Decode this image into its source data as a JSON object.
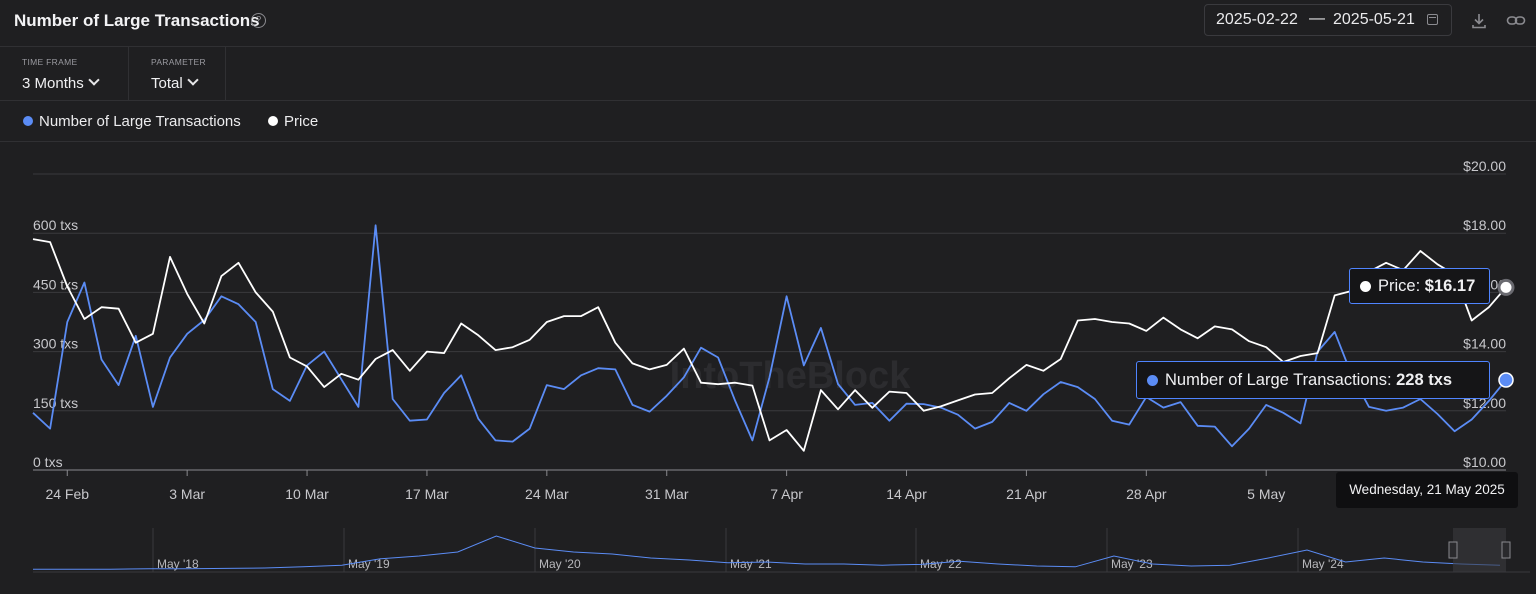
{
  "header": {
    "title": "Number of Large Transactions",
    "date_start": "2025-02-22",
    "date_separator": "—",
    "date_end": "2025-05-21"
  },
  "controls": {
    "time_frame": {
      "label": "TIME FRAME",
      "value": "3 Months"
    },
    "parameter": {
      "label": "PARAMETER",
      "value": "Total"
    }
  },
  "legend": [
    {
      "name": "Number of Large Transactions",
      "color": "#5b8cf5"
    },
    {
      "name": "Price",
      "color": "#ffffff"
    }
  ],
  "watermark": "IntoTheBlock",
  "tooltip": {
    "price_label": "Price:",
    "price_value": "$16.17",
    "tx_label": "Number of Large Transactions:",
    "tx_value": "228 txs",
    "date": "Wednesday, 21 May 2025"
  },
  "chart_data": {
    "type": "line",
    "x_start": "2025-02-22",
    "x_end": "2025-05-21",
    "x_ticks": [
      "24 Feb",
      "3 Mar",
      "10 Mar",
      "17 Mar",
      "24 Mar",
      "31 Mar",
      "7 Apr",
      "14 Apr",
      "21 Apr",
      "28 Apr",
      "5 May"
    ],
    "y_left_ticks": [
      "0 txs",
      "150 txs",
      "300 txs",
      "450 txs",
      "600 txs"
    ],
    "y_left_range": [
      0,
      600
    ],
    "y_right_ticks": [
      "$10.00",
      "$12.00",
      "$14.00",
      "$16.00",
      "$18.00",
      "$20.00"
    ],
    "y_right_range": [
      10,
      20
    ],
    "series": [
      {
        "name": "Number of Large Transactions",
        "axis": "left",
        "color": "#5b8cf5",
        "values": [
          145,
          105,
          375,
          475,
          280,
          215,
          340,
          160,
          285,
          345,
          380,
          440,
          420,
          375,
          205,
          175,
          265,
          300,
          230,
          160,
          620,
          180,
          125,
          128,
          195,
          240,
          130,
          75,
          72,
          105,
          215,
          205,
          240,
          258,
          255,
          165,
          148,
          188,
          235,
          310,
          285,
          175,
          75,
          235,
          440,
          265,
          360,
          218,
          165,
          170,
          125,
          168,
          167,
          158,
          140,
          105,
          122,
          170,
          150,
          192,
          223,
          210,
          180,
          125,
          115,
          185,
          158,
          172,
          112,
          110,
          60,
          105,
          165,
          145,
          118,
          300,
          350,
          240,
          160,
          150,
          158,
          180,
          142,
          98,
          128,
          175,
          228
        ]
      },
      {
        "name": "Price",
        "axis": "right",
        "color": "#ffffff",
        "values": [
          17.8,
          17.7,
          16.2,
          15.1,
          15.5,
          15.45,
          14.3,
          14.6,
          17.2,
          15.95,
          14.95,
          16.55,
          17.0,
          16.0,
          15.35,
          13.8,
          13.5,
          12.8,
          13.25,
          13.05,
          13.75,
          14.05,
          13.35,
          14.0,
          13.95,
          14.95,
          14.55,
          14.05,
          14.15,
          14.4,
          15.0,
          15.2,
          15.2,
          15.5,
          14.3,
          13.6,
          13.4,
          13.55,
          14.1,
          12.95,
          12.9,
          12.95,
          12.85,
          11.0,
          11.35,
          10.65,
          12.7,
          12.05,
          12.7,
          12.1,
          12.65,
          12.6,
          12.0,
          12.15,
          12.35,
          12.55,
          12.6,
          13.1,
          13.55,
          13.35,
          13.75,
          15.05,
          15.1,
          15.0,
          14.95,
          14.7,
          15.15,
          14.75,
          14.45,
          14.85,
          14.75,
          14.35,
          14.15,
          13.65,
          13.85,
          13.95,
          15.9,
          16.05,
          16.7,
          17.0,
          16.75,
          17.4,
          16.95,
          16.6,
          15.05,
          15.5,
          16.17
        ]
      }
    ],
    "navigator": {
      "labels": [
        "May '18",
        "May '19",
        "May '20",
        "May '21",
        "May '22",
        "May '23",
        "May '24"
      ],
      "values": [
        0.02,
        0.02,
        0.02,
        0.03,
        0.03,
        0.04,
        0.05,
        0.08,
        0.12,
        0.28,
        0.35,
        0.45,
        0.85,
        0.55,
        0.45,
        0.4,
        0.3,
        0.25,
        0.18,
        0.2,
        0.15,
        0.15,
        0.12,
        0.14,
        0.22,
        0.15,
        0.1,
        0.08,
        0.35,
        0.15,
        0.1,
        0.12,
        0.3,
        0.5,
        0.2,
        0.3,
        0.2,
        0.15,
        0.12
      ]
    }
  }
}
